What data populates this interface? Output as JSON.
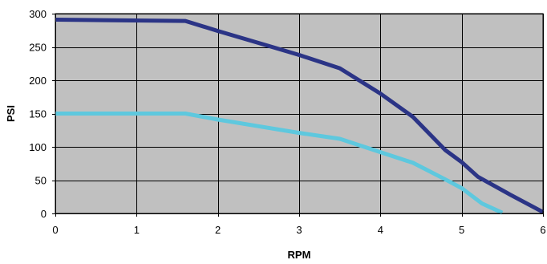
{
  "chart_data": {
    "type": "line",
    "title": "",
    "xlabel": "RPM",
    "ylabel": "PSI",
    "xlim": [
      0,
      6
    ],
    "ylim": [
      0,
      300
    ],
    "xticks": [
      0,
      1,
      2,
      3,
      4,
      5,
      6
    ],
    "yticks": [
      0,
      50,
      100,
      150,
      200,
      250,
      300
    ],
    "grid": true,
    "legend": "none",
    "colors": {
      "plot_background": "#c0c0c0",
      "grid": "#000000"
    },
    "series": [
      {
        "color": "#2b3486",
        "points": [
          [
            0,
            291
          ],
          [
            1.6,
            289
          ],
          [
            2.0,
            274
          ],
          [
            2.5,
            256
          ],
          [
            3.0,
            238
          ],
          [
            3.5,
            218
          ],
          [
            4.0,
            180
          ],
          [
            4.4,
            145
          ],
          [
            4.8,
            95
          ],
          [
            5.0,
            77
          ],
          [
            5.2,
            55
          ],
          [
            5.6,
            28
          ],
          [
            6.0,
            2
          ]
        ]
      },
      {
        "color": "#5ec8de",
        "points": [
          [
            0,
            150
          ],
          [
            1.6,
            150
          ],
          [
            2.0,
            141
          ],
          [
            2.5,
            131
          ],
          [
            3.0,
            121
          ],
          [
            3.5,
            112
          ],
          [
            4.0,
            92
          ],
          [
            4.4,
            76
          ],
          [
            4.8,
            51
          ],
          [
            5.0,
            38
          ],
          [
            5.25,
            15
          ],
          [
            5.5,
            1
          ]
        ]
      }
    ]
  }
}
